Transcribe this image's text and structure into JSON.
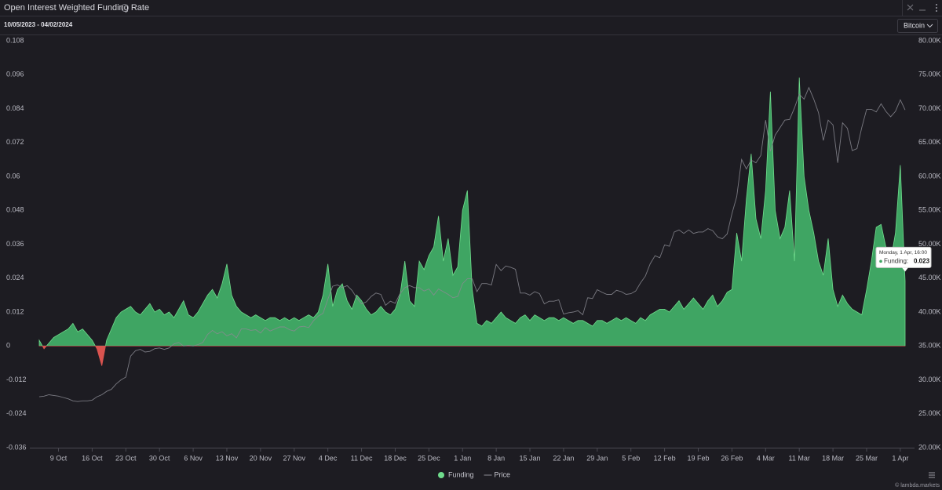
{
  "header": {
    "title": "Open Interest Weighted Funding Rate",
    "date_range": "10/05/2023 - 04/02/2024",
    "selector": "Bitcoin"
  },
  "footer": {
    "watermark": "© lambda.markets"
  },
  "chart_data": {
    "type": "area",
    "categories": [
      null,
      null,
      null,
      null,
      "9 Oct",
      null,
      null,
      null,
      null,
      null,
      null,
      "16 Oct",
      null,
      null,
      null,
      null,
      null,
      null,
      "23 Oct",
      null,
      null,
      null,
      null,
      null,
      null,
      "30 Oct",
      null,
      null,
      null,
      null,
      null,
      null,
      "6 Nov",
      null,
      null,
      null,
      null,
      null,
      null,
      "13 Nov",
      null,
      null,
      null,
      null,
      null,
      null,
      "20 Nov",
      null,
      null,
      null,
      null,
      null,
      null,
      "27 Nov",
      null,
      null,
      null,
      null,
      null,
      null,
      "4 Dec",
      null,
      null,
      null,
      null,
      null,
      null,
      "11 Dec",
      null,
      null,
      null,
      null,
      null,
      null,
      "18 Dec",
      null,
      null,
      null,
      null,
      null,
      null,
      "25 Dec",
      null,
      null,
      null,
      null,
      null,
      null,
      "1 Jan",
      null,
      null,
      null,
      null,
      null,
      null,
      "8 Jan",
      null,
      null,
      null,
      null,
      null,
      null,
      "15 Jan",
      null,
      null,
      null,
      null,
      null,
      null,
      "22 Jan",
      null,
      null,
      null,
      null,
      null,
      null,
      "29 Jan",
      null,
      null,
      null,
      null,
      null,
      null,
      "5 Feb",
      null,
      null,
      null,
      null,
      null,
      null,
      "12 Feb",
      null,
      null,
      null,
      null,
      null,
      null,
      "19 Feb",
      null,
      null,
      null,
      null,
      null,
      null,
      "26 Feb",
      null,
      null,
      null,
      null,
      null,
      null,
      "4 Mar",
      null,
      null,
      null,
      null,
      null,
      null,
      "11 Mar",
      null,
      null,
      null,
      null,
      null,
      null,
      "18 Mar",
      null,
      null,
      null,
      null,
      null,
      null,
      "25 Mar",
      null,
      null,
      null,
      null,
      null,
      null,
      "1 Apr",
      null
    ],
    "series": [
      {
        "name": "Funding",
        "color": "#3fa563",
        "line_color": "#6fdc8c",
        "negative_color": "#d9534f",
        "values": [
          0.002,
          -0.001,
          0.001,
          0.003,
          0.004,
          0.005,
          0.006,
          0.008,
          0.005,
          0.006,
          0.004,
          0.002,
          -0.001,
          -0.007,
          0.002,
          0.006,
          0.01,
          0.012,
          0.013,
          0.014,
          0.012,
          0.011,
          0.013,
          0.015,
          0.012,
          0.013,
          0.011,
          0.012,
          0.01,
          0.013,
          0.016,
          0.011,
          0.01,
          0.012,
          0.015,
          0.018,
          0.02,
          0.017,
          0.022,
          0.029,
          0.018,
          0.014,
          0.012,
          0.011,
          0.01,
          0.011,
          0.01,
          0.009,
          0.01,
          0.01,
          0.009,
          0.01,
          0.009,
          0.01,
          0.009,
          0.01,
          0.011,
          0.01,
          0.012,
          0.018,
          0.029,
          0.014,
          0.02,
          0.022,
          0.016,
          0.013,
          0.018,
          0.016,
          0.013,
          0.011,
          0.012,
          0.014,
          0.012,
          0.011,
          0.013,
          0.018,
          0.03,
          0.016,
          0.014,
          0.03,
          0.027,
          0.032,
          0.035,
          0.046,
          0.03,
          0.038,
          0.025,
          0.028,
          0.048,
          0.055,
          0.02,
          0.008,
          0.007,
          0.009,
          0.008,
          0.01,
          0.012,
          0.01,
          0.009,
          0.008,
          0.01,
          0.011,
          0.009,
          0.011,
          0.01,
          0.009,
          0.01,
          0.01,
          0.009,
          0.01,
          0.009,
          0.008,
          0.009,
          0.009,
          0.008,
          0.007,
          0.009,
          0.009,
          0.008,
          0.009,
          0.01,
          0.009,
          0.01,
          0.009,
          0.008,
          0.01,
          0.009,
          0.011,
          0.012,
          0.013,
          0.013,
          0.012,
          0.014,
          0.016,
          0.013,
          0.015,
          0.017,
          0.015,
          0.013,
          0.016,
          0.018,
          0.014,
          0.016,
          0.019,
          0.02,
          0.04,
          0.03,
          0.052,
          0.068,
          0.045,
          0.038,
          0.055,
          0.09,
          0.048,
          0.038,
          0.042,
          0.055,
          0.03,
          0.095,
          0.06,
          0.048,
          0.04,
          0.03,
          0.025,
          0.038,
          0.02,
          0.014,
          0.018,
          0.015,
          0.013,
          0.012,
          0.011,
          0.02,
          0.03,
          0.042,
          0.043,
          0.035,
          0.03,
          0.04,
          0.064,
          0.023
        ]
      },
      {
        "name": "Price",
        "color": "#8a8a92",
        "axis": "y2",
        "values": [
          27500,
          27600,
          27800,
          27700,
          27600,
          27400,
          27200,
          26900,
          26800,
          26900,
          26900,
          27000,
          27500,
          27800,
          28300,
          28600,
          29400,
          30000,
          30400,
          33500,
          34300,
          34500,
          34100,
          34200,
          34600,
          34700,
          34500,
          34700,
          35300,
          35500,
          35000,
          35100,
          35000,
          35200,
          35500,
          36700,
          37300,
          36800,
          37100,
          36500,
          36800,
          36200,
          37500,
          37500,
          37300,
          37400,
          36900,
          37700,
          37200,
          37500,
          37800,
          37800,
          37400,
          37200,
          37800,
          37900,
          37700,
          38700,
          39400,
          39800,
          41900,
          43800,
          44000,
          43600,
          43900,
          43200,
          42100,
          41200,
          41500,
          42300,
          42800,
          42600,
          41000,
          41600,
          41300,
          42700,
          43600,
          43900,
          43600,
          43600,
          43100,
          43400,
          42500,
          43400,
          43000,
          42600,
          42100,
          42300,
          44200,
          44900,
          44900,
          43000,
          44200,
          44200,
          44000,
          47000,
          46100,
          46800,
          46600,
          46300,
          42800,
          42800,
          42500,
          43000,
          42700,
          41200,
          41600,
          41600,
          41800,
          39700,
          39900,
          40000,
          40200,
          39600,
          42100,
          42000,
          43300,
          42900,
          42600,
          42600,
          43200,
          43000,
          42600,
          42700,
          43100,
          44300,
          45300,
          47100,
          48300,
          48000,
          49900,
          49700,
          51800,
          52100,
          51600,
          52100,
          51600,
          51800,
          51800,
          52300,
          52000,
          51100,
          50800,
          51500,
          54500,
          57000,
          62500,
          61100,
          62400,
          62000,
          63100,
          68300,
          63700,
          66100,
          67200,
          68300,
          68400,
          70100,
          72100,
          71400,
          73100,
          71400,
          69400,
          65300,
          68300,
          67600,
          62000,
          67900,
          67100,
          63800,
          64100,
          67200,
          69900,
          69900,
          69500,
          70700,
          69600,
          68800,
          69600,
          71300,
          69800
        ]
      }
    ],
    "ylim": [
      -0.036,
      0.108
    ],
    "yticks": [
      0.108,
      0.096,
      0.084,
      0.072,
      0.06,
      0.048,
      0.036,
      0.024,
      0.012,
      0,
      -0.012,
      -0.024,
      -0.036
    ],
    "y2lim": [
      20000,
      80000
    ],
    "y2ticks": [
      {
        "value": 80000,
        "label": "80.00K"
      },
      {
        "value": 75000,
        "label": "75.00K"
      },
      {
        "value": 70000,
        "label": "70.00K"
      },
      {
        "value": 65000,
        "label": "65.00K"
      },
      {
        "value": 60000,
        "label": "60.00K"
      },
      {
        "value": 55000,
        "label": "55.00K"
      },
      {
        "value": 50000,
        "label": "50.00K"
      },
      {
        "value": 45000,
        "label": "45.00K"
      },
      {
        "value": 40000,
        "label": "40.00K"
      },
      {
        "value": 35000,
        "label": "35.00K"
      },
      {
        "value": 30000,
        "label": "30.00K"
      },
      {
        "value": 25000,
        "label": "25.00K"
      },
      {
        "value": 20000,
        "label": "20.00K"
      }
    ],
    "grid": false,
    "legend": "bottom",
    "tooltip": {
      "title": "Monday, 1 Apr, 16:00",
      "label": "Funding:",
      "value": 0.023
    }
  }
}
